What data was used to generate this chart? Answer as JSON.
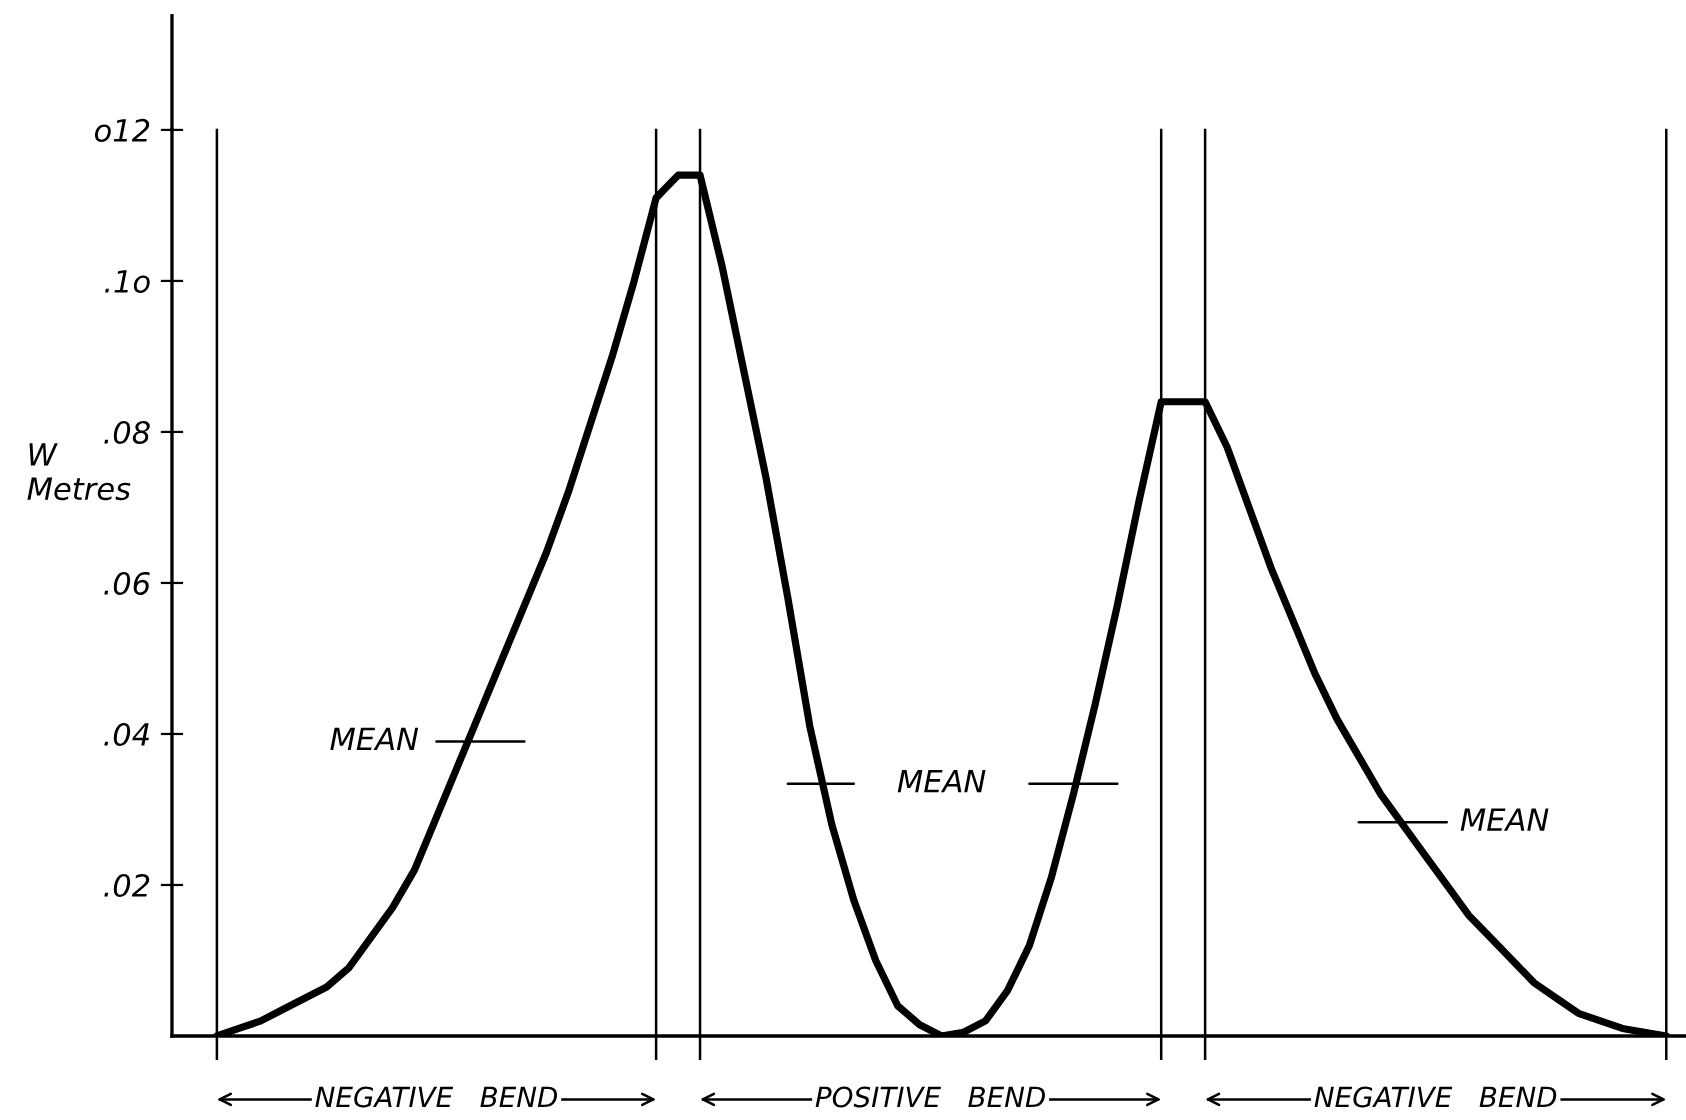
{
  "chart_data": {
    "type": "line",
    "ylabel": "W\nMetres",
    "categories": [
      null,
      null,
      null,
      null,
      null,
      null,
      null,
      null,
      null,
      null,
      null,
      null,
      null,
      null,
      null,
      null,
      null,
      null,
      null,
      null,
      null,
      null,
      null,
      null,
      null,
      null,
      null,
      null,
      null,
      null,
      null,
      null,
      null,
      null,
      null,
      null,
      null,
      null,
      null,
      null,
      null,
      null,
      null,
      null,
      null,
      null,
      null,
      null,
      null,
      null,
      null,
      null,
      null,
      null,
      null,
      null,
      null,
      null,
      null,
      null,
      null,
      null,
      null,
      null,
      null,
      null,
      null
    ],
    "series": [
      {
        "color": "#000000",
        "values": [
          0,
          0.001,
          0.002,
          0.0035,
          0.005,
          0.0065,
          0.009,
          0.013,
          0.017,
          0.022,
          0.029,
          0.036,
          0.043,
          0.05,
          0.057,
          0.064,
          0.072,
          0.081,
          0.09,
          0.1,
          0.111,
          0.114,
          0.114,
          0.102,
          0.088,
          0.074,
          0.058,
          0.041,
          0.028,
          0.018,
          0.01,
          0.004,
          0.0015,
          0,
          0.0005,
          0.002,
          0.006,
          0.012,
          0.021,
          0.032,
          0.044,
          0.057,
          0.071,
          0.084,
          0.084,
          0.084,
          0.078,
          0.07,
          0.062,
          0.055,
          0.048,
          0.042,
          0.037,
          0.032,
          0.028,
          0.024,
          0.02,
          0.016,
          0.013,
          0.01,
          0.007,
          0.005,
          0.003,
          0.002,
          0.001,
          0.0005,
          0
        ]
      },
      {
        "color": "#000000",
        "values": [
          null,
          null,
          null,
          null,
          null,
          null,
          null,
          null,
          null,
          null,
          0.039,
          0.039,
          0.039,
          0.039,
          0.039,
          null,
          null,
          null,
          null,
          null,
          null,
          null,
          null,
          null,
          null,
          null,
          null,
          null,
          null,
          null,
          null,
          null,
          null,
          null,
          null,
          null,
          null,
          null,
          null,
          null,
          null,
          null,
          null,
          null,
          null,
          null,
          null,
          null,
          null,
          null,
          null,
          null,
          null,
          null,
          null,
          null,
          null,
          null,
          null,
          null,
          null,
          null,
          null,
          null,
          null,
          null,
          null
        ]
      },
      {
        "color": "#000000",
        "values": [
          null,
          null,
          null,
          null,
          null,
          null,
          null,
          null,
          null,
          null,
          null,
          null,
          null,
          null,
          null,
          null,
          null,
          null,
          null,
          null,
          null,
          null,
          null,
          null,
          null,
          null,
          0.0334,
          0.0334,
          0.0334,
          0.0334,
          null,
          null,
          null,
          null,
          null,
          null,
          null,
          0.0334,
          0.0334,
          0.0334,
          0.0334,
          0.0334,
          null,
          null,
          null,
          null,
          null,
          null,
          null,
          null,
          null,
          null,
          null,
          null,
          null,
          null,
          null,
          null,
          null,
          null,
          null,
          null,
          null,
          null,
          null,
          null,
          null
        ]
      },
      {
        "color": "#000000",
        "values": [
          null,
          null,
          null,
          null,
          null,
          null,
          null,
          null,
          null,
          null,
          null,
          null,
          null,
          null,
          null,
          null,
          null,
          null,
          null,
          null,
          null,
          null,
          null,
          null,
          null,
          null,
          null,
          null,
          null,
          null,
          null,
          null,
          null,
          null,
          null,
          null,
          null,
          null,
          null,
          null,
          null,
          null,
          null,
          null,
          null,
          null,
          null,
          null,
          null,
          null,
          null,
          null,
          0.0283,
          0.0283,
          0.0283,
          0.0283,
          0.0283,
          null,
          null,
          null,
          null,
          null,
          null,
          null,
          null,
          null,
          null
        ]
      }
    ],
    "ylim": [
      0,
      0.12
    ],
    "yticks": [
      {
        "value": 0.02,
        "label": ".02"
      },
      {
        "value": 0.04,
        "label": ".04"
      },
      {
        "value": 0.06,
        "label": ".06"
      },
      {
        "value": 0.08,
        "label": ".08"
      },
      {
        "value": 0.1,
        "label": ".1o"
      },
      {
        "value": 0.12,
        "label": "o12"
      }
    ],
    "tick_labels": "y",
    "grid": false,
    "legend": false,
    "marker": "none",
    "line_style": "solid",
    "annotations": [
      "MEAN",
      "MEAN",
      "MEAN",
      "NEGATIVE   BEND",
      "POSITIVE   BEND",
      "NEGATIVE   BEND"
    ]
  }
}
